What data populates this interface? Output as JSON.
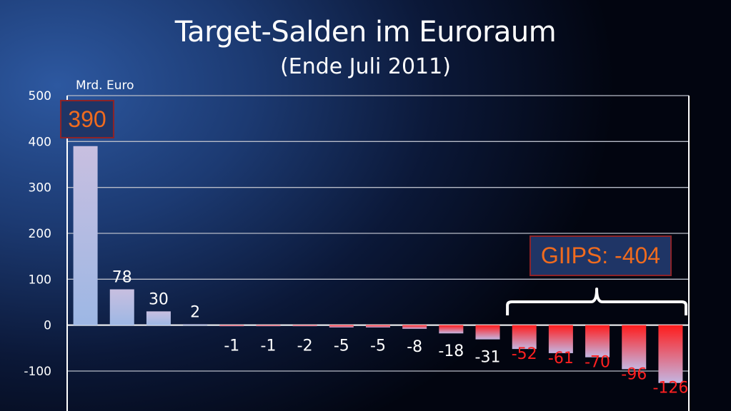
{
  "chart_data": {
    "type": "bar",
    "title": "Target-Salden im Euroraum",
    "subtitle": "(Ende Juli 2011)",
    "unit_label": "Mrd. Euro",
    "ylim": [
      -100,
      500
    ],
    "yticks": [
      500,
      400,
      300,
      200,
      100,
      0,
      -100
    ],
    "grid": true,
    "values": [
      390,
      78,
      30,
      2,
      -1,
      -1,
      -2,
      -5,
      -5,
      -8,
      -18,
      -31,
      -52,
      -61,
      -70,
      -96,
      -126
    ],
    "labels": [
      "",
      "78",
      "30",
      "2",
      "-1",
      "-1",
      "-2",
      "-5",
      "-5",
      "-8",
      "-18",
      "-31",
      "-52",
      "-61",
      "-70",
      "-96",
      "-126"
    ],
    "highlight_from_index": 12,
    "annotations": {
      "max_callout": "390",
      "group_callout": "GIIPS: -404"
    }
  },
  "colors": {
    "positive_bar_top": "#c8bfe0",
    "positive_bar_bottom": "#9db7e4",
    "negative_bar_top": "#ff1c1c",
    "negative_bar_bottom": "#c4b6e2",
    "highlight_label": "#ff2020",
    "callout_text": "#f06b1e",
    "callout_border": "#8c2328"
  }
}
